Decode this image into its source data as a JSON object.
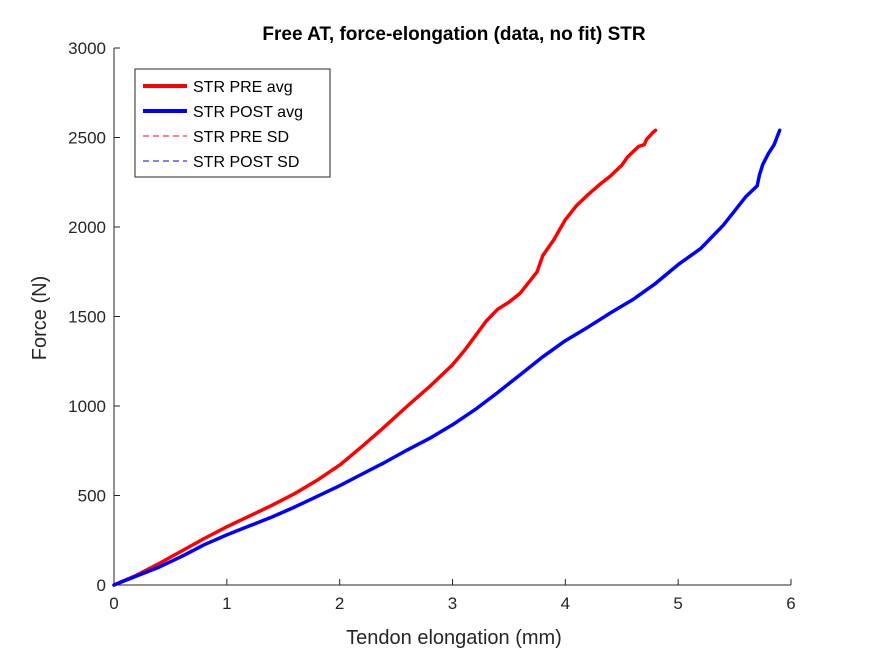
{
  "chart_data": {
    "type": "line",
    "title": "Free AT, force-elongation (data, no fit) STR",
    "xlabel": "Tendon elongation (mm)",
    "ylabel": "Force (N)",
    "xlim": [
      0,
      6
    ],
    "ylim": [
      0,
      3000
    ],
    "xticks": [
      0,
      1,
      2,
      3,
      4,
      5,
      6
    ],
    "yticks": [
      0,
      500,
      1000,
      1500,
      2000,
      2500,
      3000
    ],
    "grid": false,
    "legend_position": "top-left",
    "series": [
      {
        "name": "STR PRE avg",
        "color": "#ff0000",
        "style": "solid-thick",
        "x": [
          0,
          0.2,
          0.4,
          0.6,
          0.8,
          1.0,
          1.2,
          1.4,
          1.6,
          1.8,
          2.0,
          2.2,
          2.4,
          2.6,
          2.8,
          3.0,
          3.1,
          3.2,
          3.3,
          3.4,
          3.5,
          3.6,
          3.7,
          3.75,
          3.8,
          3.9,
          4.0,
          4.1,
          4.2,
          4.3,
          4.4,
          4.5,
          4.55,
          4.6,
          4.65,
          4.7,
          4.72,
          4.75,
          4.78,
          4.8
        ],
        "y": [
          0,
          55,
          120,
          190,
          260,
          325,
          385,
          445,
          510,
          585,
          670,
          775,
          885,
          1000,
          1110,
          1230,
          1305,
          1390,
          1475,
          1540,
          1580,
          1630,
          1710,
          1750,
          1840,
          1930,
          2040,
          2120,
          2180,
          2235,
          2285,
          2345,
          2390,
          2420,
          2450,
          2460,
          2490,
          2510,
          2530,
          2540
        ]
      },
      {
        "name": "STR POST avg",
        "color": "#0000ff",
        "style": "solid-thick",
        "x": [
          0,
          0.2,
          0.4,
          0.6,
          0.8,
          1.0,
          1.2,
          1.4,
          1.6,
          1.8,
          2.0,
          2.2,
          2.4,
          2.6,
          2.8,
          3.0,
          3.2,
          3.4,
          3.6,
          3.8,
          4.0,
          4.2,
          4.4,
          4.6,
          4.8,
          5.0,
          5.2,
          5.4,
          5.5,
          5.6,
          5.65,
          5.7,
          5.72,
          5.75,
          5.8,
          5.85,
          5.9
        ],
        "y": [
          0,
          50,
          100,
          160,
          225,
          280,
          330,
          380,
          435,
          495,
          555,
          620,
          685,
          755,
          820,
          895,
          980,
          1075,
          1175,
          1275,
          1365,
          1440,
          1520,
          1595,
          1685,
          1790,
          1880,
          2010,
          2090,
          2170,
          2200,
          2230,
          2290,
          2350,
          2410,
          2460,
          2540
        ]
      },
      {
        "name": "STR PRE SD",
        "color": "#ff0000",
        "style": "dashed-thin",
        "x": [],
        "y": []
      },
      {
        "name": "STR POST SD",
        "color": "#0000ff",
        "style": "dashed-thin",
        "x": [],
        "y": []
      }
    ]
  }
}
